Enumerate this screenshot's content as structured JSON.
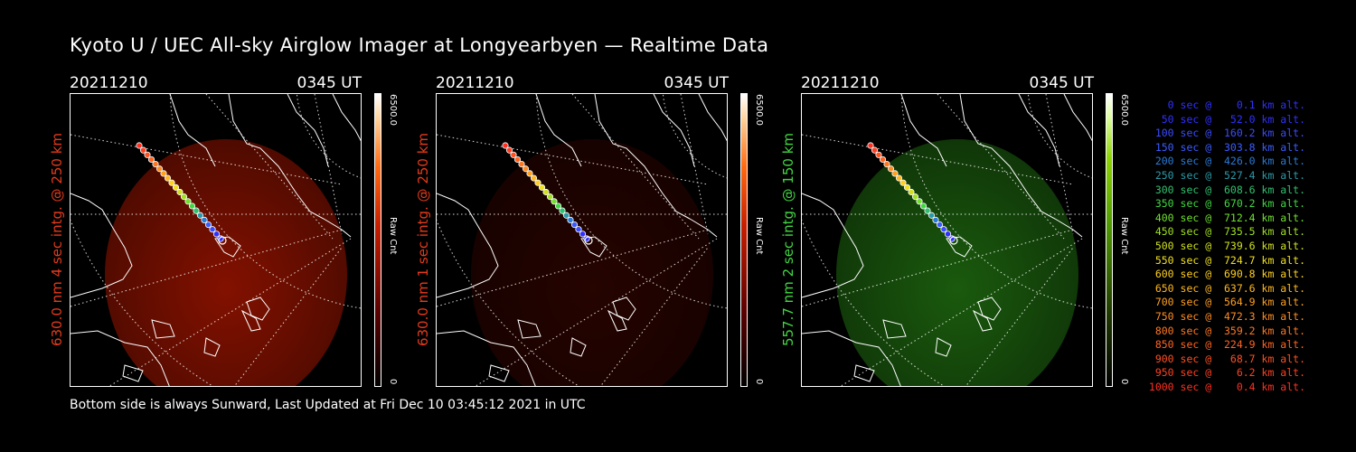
{
  "title": "Kyoto U / UEC All-sky Airglow Imager at Longyearbyen — Realtime Data",
  "footer": "Bottom side is always Sunward, Last Updated at Fri Dec 10 03:45:12 2021 in UTC",
  "panels": [
    {
      "date": "20211210",
      "time": "0345 UT",
      "ylabel": "630.0 nm 4 sec intg. @ 250 km",
      "ylabel_color": "#e53a1a",
      "colorbar_max": "6500.0",
      "colorbar_min": "0",
      "colorbar_label": "Raw Cnt",
      "emission_color": "#8a1200",
      "emission_brightness": "bright"
    },
    {
      "date": "20211210",
      "time": "0345 UT",
      "ylabel": "630.0 nm 1 sec intg. @ 250 km",
      "ylabel_color": "#e53a1a",
      "colorbar_max": "6500.0",
      "colorbar_min": "0",
      "colorbar_label": "Raw Cnt",
      "emission_color": "#2a0400",
      "emission_brightness": "dim"
    },
    {
      "date": "20211210",
      "time": "0345 UT",
      "ylabel": "557.7 nm 2 sec intg. @ 150 km",
      "ylabel_color": "#41d641",
      "colorbar_max": "6500.0",
      "colorbar_min": "0",
      "colorbar_label": "Raw Cnt",
      "emission_color": "#1f6a10",
      "emission_brightness": "medium"
    }
  ],
  "altitude_legend": [
    {
      "text": "   0 sec @    0.1 km alt.",
      "color": "#3030ff"
    },
    {
      "text": "  50 sec @   52.0 km alt.",
      "color": "#3030ff"
    },
    {
      "text": " 100 sec @  160.2 km alt.",
      "color": "#3a4cff"
    },
    {
      "text": " 150 sec @  303.8 km alt.",
      "color": "#3a5cff"
    },
    {
      "text": " 200 sec @  426.0 km alt.",
      "color": "#2a7ad8"
    },
    {
      "text": " 250 sec @  527.4 km alt.",
      "color": "#2a9aa8"
    },
    {
      "text": " 300 sec @  608.6 km alt.",
      "color": "#30c070"
    },
    {
      "text": " 350 sec @  670.2 km alt.",
      "color": "#40d840"
    },
    {
      "text": " 400 sec @  712.4 km alt.",
      "color": "#70e030"
    },
    {
      "text": " 450 sec @  735.5 km alt.",
      "color": "#a0e020"
    },
    {
      "text": " 500 sec @  739.6 km alt.",
      "color": "#d0e020"
    },
    {
      "text": " 550 sec @  724.7 km alt.",
      "color": "#f0e020"
    },
    {
      "text": " 600 sec @  690.8 km alt.",
      "color": "#ffd020"
    },
    {
      "text": " 650 sec @  637.6 km alt.",
      "color": "#ffb820"
    },
    {
      "text": " 700 sec @  564.9 km alt.",
      "color": "#ffa020"
    },
    {
      "text": " 750 sec @  472.3 km alt.",
      "color": "#ff8c20"
    },
    {
      "text": " 800 sec @  359.2 km alt.",
      "color": "#ff7820"
    },
    {
      "text": " 850 sec @  224.9 km alt.",
      "color": "#ff6420"
    },
    {
      "text": " 900 sec @   68.7 km alt.",
      "color": "#ff5020"
    },
    {
      "text": " 950 sec @    6.2 km alt.",
      "color": "#ff4020"
    },
    {
      "text": "1000 sec @    0.4 km alt.",
      "color": "#ff3020"
    }
  ]
}
